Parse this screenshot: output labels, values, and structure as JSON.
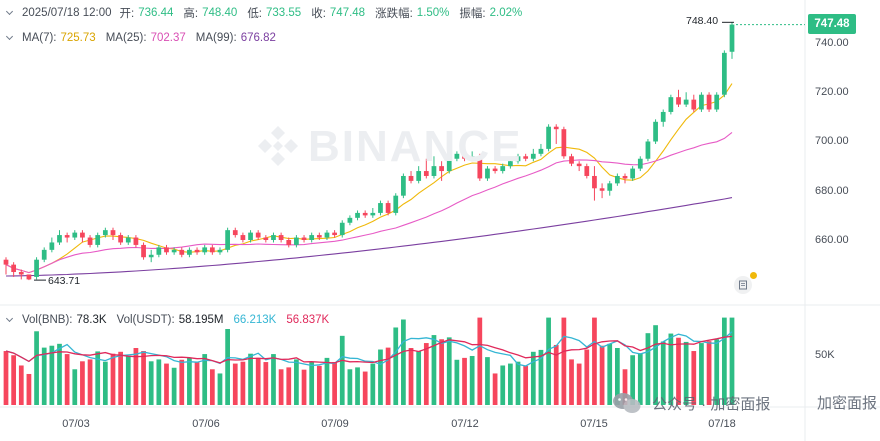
{
  "info": {
    "datetime": "2025/07/18 12:00",
    "open_label": "开:",
    "open": "736.44",
    "high_label": "高:",
    "high": "748.40",
    "low_label": "低:",
    "low": "733.55",
    "close_label": "收:",
    "close": "747.48",
    "change_label": "涨跌幅:",
    "change": "1.50%",
    "amplitude_label": "振幅:",
    "amplitude": "2.02%"
  },
  "ma": {
    "ma7_label": "MA(7):",
    "ma7": "725.73",
    "ma25_label": "MA(25):",
    "ma25": "702.37",
    "ma99_label": "MA(99):",
    "ma99": "676.82"
  },
  "vol": {
    "vol_bnb_label": "Vol(BNB):",
    "vol_bnb": "78.3K",
    "vol_usdt_label": "Vol(USDT):",
    "vol_usdt": "58.195M",
    "v1": "66.213K",
    "v2": "56.837K",
    "axis_label": "50K"
  },
  "price": {
    "current": "747.48",
    "high_marker": "748.40",
    "low_marker": "643.71",
    "axis": [
      "740.00",
      "720.00",
      "700.00",
      "680.00",
      "660.00"
    ]
  },
  "dates": [
    "07/03",
    "07/06",
    "07/09",
    "07/12",
    "07/15",
    "07/18"
  ],
  "watermark": "BINANCE",
  "footer": {
    "left": "公众号 · 加密面报",
    "right": "加密面报"
  },
  "colors": {
    "up": "#2ebd85",
    "down": "#f6465d",
    "ma7": "#f0b90b",
    "ma25": "#e75bc6",
    "ma99": "#7b3fa0",
    "vma1": "#35b6d4",
    "vma2": "#e0295b"
  },
  "chart_data": {
    "type": "candlestick",
    "price_range": [
      640,
      750
    ],
    "candles": [
      [
        652,
        650,
        653,
        646
      ],
      [
        650,
        647,
        651,
        645
      ],
      [
        647,
        646,
        648,
        644
      ],
      [
        646,
        644,
        646,
        643.71
      ],
      [
        645,
        652,
        653,
        644
      ],
      [
        652,
        656,
        657,
        651
      ],
      [
        656,
        659,
        661,
        655
      ],
      [
        659,
        662,
        664,
        658
      ],
      [
        662,
        661,
        663,
        659
      ],
      [
        661,
        663,
        664,
        660
      ],
      [
        663,
        661,
        664,
        659
      ],
      [
        661,
        658,
        662,
        657
      ],
      [
        658,
        662,
        663,
        657
      ],
      [
        662,
        664,
        665,
        661
      ],
      [
        664,
        662,
        665,
        660
      ],
      [
        662,
        659,
        663,
        658
      ],
      [
        659,
        661,
        662,
        658
      ],
      [
        661,
        658,
        662,
        657
      ],
      [
        658,
        653,
        659,
        652
      ],
      [
        653,
        654,
        656,
        651
      ],
      [
        654,
        657,
        658,
        653
      ],
      [
        657,
        655,
        658,
        654
      ],
      [
        655,
        656,
        657,
        654
      ],
      [
        656,
        654,
        657,
        653
      ],
      [
        654,
        656,
        657,
        653
      ],
      [
        656,
        655,
        657,
        654
      ],
      [
        655,
        657,
        658,
        654
      ],
      [
        657,
        655,
        658,
        654
      ],
      [
        655,
        656,
        657,
        654
      ],
      [
        656,
        664,
        665,
        655
      ],
      [
        664,
        662,
        665,
        661
      ],
      [
        662,
        660,
        663,
        659
      ],
      [
        660,
        663,
        664,
        659
      ],
      [
        663,
        661,
        664,
        660
      ],
      [
        661,
        660,
        662,
        659
      ],
      [
        660,
        662,
        663,
        659
      ],
      [
        662,
        660,
        663,
        659
      ],
      [
        660,
        658,
        661,
        657
      ],
      [
        658,
        661,
        662,
        657
      ],
      [
        661,
        660,
        662,
        659
      ],
      [
        660,
        662,
        663,
        659
      ],
      [
        662,
        661,
        663,
        660
      ],
      [
        661,
        663,
        664,
        660
      ],
      [
        663,
        662,
        664,
        661
      ],
      [
        662,
        667,
        668,
        661
      ],
      [
        667,
        669,
        670,
        666
      ],
      [
        669,
        671,
        672,
        668
      ],
      [
        671,
        670,
        672,
        669
      ],
      [
        670,
        671,
        673,
        669
      ],
      [
        671,
        675,
        676,
        670
      ],
      [
        675,
        671,
        676,
        670
      ],
      [
        671,
        678,
        679,
        670
      ],
      [
        678,
        686,
        687,
        677
      ],
      [
        686,
        684,
        688,
        683
      ],
      [
        684,
        688,
        690,
        683
      ],
      [
        688,
        686,
        693,
        685
      ],
      [
        686,
        690,
        694,
        685
      ],
      [
        690,
        688,
        692,
        684
      ],
      [
        688,
        693,
        695,
        687
      ],
      [
        693,
        695,
        696,
        692
      ],
      [
        695,
        693,
        696,
        692
      ],
      [
        693,
        694,
        696,
        692
      ],
      [
        694,
        685,
        695,
        684
      ],
      [
        685,
        689,
        690,
        684
      ],
      [
        689,
        688,
        690,
        687
      ],
      [
        688,
        690,
        691,
        687
      ],
      [
        690,
        692,
        693,
        689
      ],
      [
        692,
        694,
        695,
        691
      ],
      [
        694,
        693,
        695,
        692
      ],
      [
        693,
        695,
        697,
        692
      ],
      [
        695,
        697,
        699,
        694
      ],
      [
        697,
        706,
        707,
        696
      ],
      [
        706,
        705,
        707,
        699
      ],
      [
        705,
        694,
        706,
        693
      ],
      [
        694,
        691,
        695,
        690
      ],
      [
        691,
        690,
        692,
        688
      ],
      [
        690,
        686,
        691,
        685
      ],
      [
        686,
        681,
        690,
        676
      ],
      [
        681,
        680,
        683,
        677
      ],
      [
        680,
        683,
        684,
        678
      ],
      [
        683,
        686,
        687,
        682
      ],
      [
        686,
        685,
        687,
        683
      ],
      [
        685,
        689,
        690,
        684
      ],
      [
        689,
        693,
        694,
        688
      ],
      [
        693,
        700,
        701,
        692
      ],
      [
        700,
        708,
        709,
        699
      ],
      [
        708,
        712,
        713,
        706
      ],
      [
        712,
        718,
        719,
        711
      ],
      [
        718,
        715,
        721,
        714
      ],
      [
        715,
        717,
        720,
        714
      ],
      [
        717,
        713,
        719,
        712
      ],
      [
        713,
        719,
        720,
        712
      ],
      [
        719,
        713,
        720,
        712
      ],
      [
        713,
        719,
        720,
        712
      ],
      [
        719,
        736,
        737,
        718
      ],
      [
        736.44,
        747.48,
        748.4,
        733.55
      ]
    ]
  }
}
